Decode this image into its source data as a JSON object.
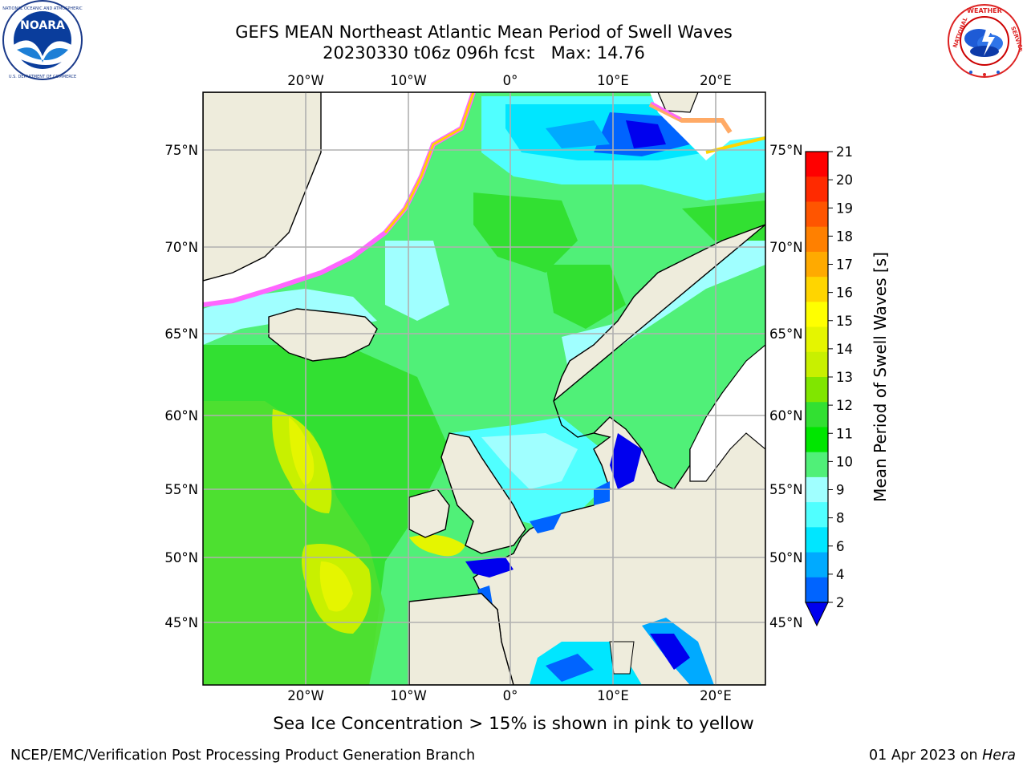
{
  "header": {
    "title_line1": "GEFS MEAN Northeast Atlantic Mean Period of Swell Waves",
    "title_line2": "20230330 t06z 096h fcst   Max: 14.76"
  },
  "logos": {
    "left": {
      "name": "NOARA",
      "ring_text": "NATIONAL OCEANIC AND ATMOSPHERIC ADMINISTRATION · U.S. DEPARTMENT OF COMMERCE",
      "icon": "noaa-logo"
    },
    "right": {
      "ring_text": "NATIONAL WEATHER SERVICE",
      "icon": "nws-logo"
    }
  },
  "map": {
    "lon_labels": [
      "20°W",
      "10°W",
      "0°",
      "10°E",
      "20°E"
    ],
    "lat_labels": [
      "75°N",
      "70°N",
      "65°N",
      "60°N",
      "55°N",
      "50°N",
      "45°N"
    ],
    "colors": {
      "land": "#eeecdc",
      "ice_free_white": "#ffffff",
      "grid": "#b0b0b0"
    }
  },
  "colorbar": {
    "label": "Mean Period of Swell Waves [s]",
    "ticks": [
      "21",
      "20",
      "19",
      "18",
      "17",
      "16",
      "15",
      "14",
      "13",
      "12",
      "11",
      "10",
      "9",
      "8",
      "6",
      "4",
      "2"
    ],
    "colors_top_to_bottom": [
      "#ff0000",
      "#ff2a00",
      "#ff5500",
      "#ff8000",
      "#ffaa00",
      "#ffd500",
      "#ffff00",
      "#e5f500",
      "#c8f000",
      "#80e600",
      "#32e032",
      "#00e600",
      "#50f078",
      "#a0ffff",
      "#50ffff",
      "#00e6ff",
      "#00aaff",
      "#0064ff"
    ],
    "extend_color": "#0000ee"
  },
  "caption": "Sea Ice Concentration > 15% is shown in pink to yellow",
  "footer": {
    "left": "NCEP/EMC/Verification Post Processing Product Generation Branch",
    "right_date": "01 Apr 2023 on ",
    "right_host": "Hera"
  }
}
